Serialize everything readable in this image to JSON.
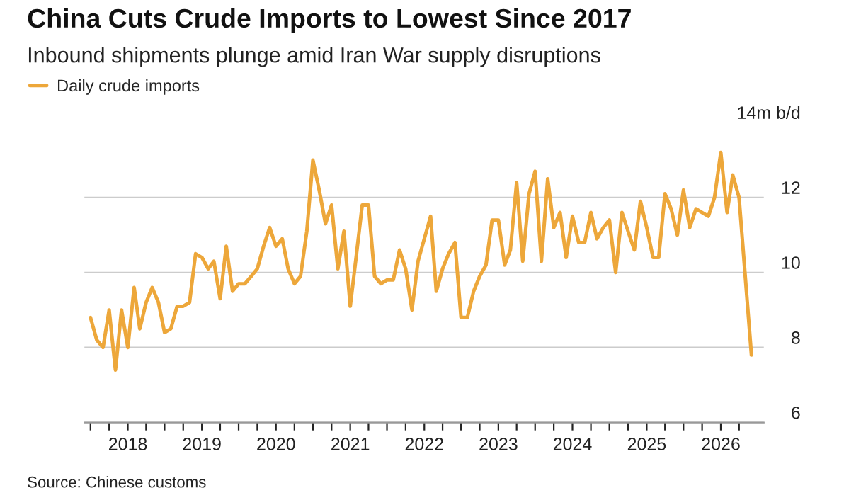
{
  "chart_data": {
    "type": "line",
    "title": "China Cuts Crude Imports to Lowest Since 2017",
    "subtitle": "Inbound shipments plunge amid Iran War supply disruptions",
    "series": [
      {
        "name": "Daily crude imports",
        "color": "#eda73a",
        "x": [
          "2017-07",
          "2017-08",
          "2017-09",
          "2017-10",
          "2017-11",
          "2017-12",
          "2018-01",
          "2018-02",
          "2018-03",
          "2018-04",
          "2018-05",
          "2018-06",
          "2018-07",
          "2018-08",
          "2018-09",
          "2018-10",
          "2018-11",
          "2018-12",
          "2019-01",
          "2019-02",
          "2019-03",
          "2019-04",
          "2019-05",
          "2019-06",
          "2019-07",
          "2019-08",
          "2019-09",
          "2019-10",
          "2019-11",
          "2019-12",
          "2020-01",
          "2020-02",
          "2020-03",
          "2020-04",
          "2020-05",
          "2020-06",
          "2020-07",
          "2020-08",
          "2020-09",
          "2020-10",
          "2020-11",
          "2020-12",
          "2021-01",
          "2021-02",
          "2021-03",
          "2021-04",
          "2021-05",
          "2021-06",
          "2021-07",
          "2021-08",
          "2021-09",
          "2021-10",
          "2021-11",
          "2021-12",
          "2022-01",
          "2022-02",
          "2022-03",
          "2022-04",
          "2022-05",
          "2022-06",
          "2022-07",
          "2022-08",
          "2022-09",
          "2022-10",
          "2022-11",
          "2022-12",
          "2023-01",
          "2023-02",
          "2023-03",
          "2023-04",
          "2023-05",
          "2023-06",
          "2023-07",
          "2023-08",
          "2023-09",
          "2023-10",
          "2023-11",
          "2023-12",
          "2024-01",
          "2024-02",
          "2024-03",
          "2024-04",
          "2024-05",
          "2024-06",
          "2024-07",
          "2024-08",
          "2024-09",
          "2024-10",
          "2024-11",
          "2024-12",
          "2025-01",
          "2025-02",
          "2025-03",
          "2025-04",
          "2025-05",
          "2025-06",
          "2025-07",
          "2025-08",
          "2025-09",
          "2025-10",
          "2025-11",
          "2025-12",
          "2026-01",
          "2026-02",
          "2026-03",
          "2026-04",
          "2026-06"
        ],
        "values": [
          8.8,
          8.2,
          8.0,
          9.0,
          7.4,
          9.0,
          8.0,
          9.6,
          8.5,
          9.2,
          9.6,
          9.2,
          8.4,
          8.5,
          9.1,
          9.1,
          9.2,
          10.5,
          10.4,
          10.1,
          10.3,
          9.3,
          10.7,
          9.5,
          9.7,
          9.7,
          9.9,
          10.1,
          10.7,
          11.2,
          10.7,
          10.9,
          10.1,
          9.7,
          9.9,
          11.1,
          13.0,
          12.2,
          11.3,
          11.8,
          10.1,
          11.1,
          9.1,
          10.5,
          11.8,
          11.8,
          9.9,
          9.7,
          9.8,
          9.8,
          10.6,
          10.1,
          9.0,
          10.3,
          10.9,
          11.5,
          9.5,
          10.1,
          10.5,
          10.8,
          8.8,
          8.8,
          9.5,
          9.9,
          10.2,
          11.4,
          11.4,
          10.2,
          10.6,
          12.4,
          10.3,
          12.1,
          12.7,
          10.3,
          12.5,
          11.2,
          11.6,
          10.4,
          11.5,
          10.8,
          10.8,
          11.6,
          10.9,
          11.2,
          11.4,
          10.0,
          11.6,
          11.1,
          10.6,
          11.9,
          11.2,
          10.4,
          10.4,
          12.1,
          11.7,
          11.0,
          12.2,
          11.2,
          11.7,
          11.6,
          11.5,
          12.0,
          13.2,
          11.6,
          12.6,
          12.0,
          7.8
        ]
      }
    ],
    "ylim": [
      6,
      14
    ],
    "yticks": [
      6,
      8,
      10,
      12,
      {
        "value": 14,
        "label": "14m b/d"
      }
    ],
    "xlim": [
      "2017-06",
      "2026-08"
    ],
    "xticks": [
      {
        "value": "2017-07",
        "label": null
      },
      {
        "value": "2017-10",
        "label": null
      },
      {
        "value": "2018-01",
        "label": "2018"
      },
      {
        "value": "2018-04",
        "label": null
      },
      {
        "value": "2018-07",
        "label": null
      },
      {
        "value": "2018-10",
        "label": null
      },
      {
        "value": "2019-01",
        "label": "2019"
      },
      {
        "value": "2019-04",
        "label": null
      },
      {
        "value": "2019-07",
        "label": null
      },
      {
        "value": "2019-10",
        "label": null
      },
      {
        "value": "2020-01",
        "label": "2020"
      },
      {
        "value": "2020-04",
        "label": null
      },
      {
        "value": "2020-07",
        "label": null
      },
      {
        "value": "2020-10",
        "label": null
      },
      {
        "value": "2021-01",
        "label": "2021"
      },
      {
        "value": "2021-04",
        "label": null
      },
      {
        "value": "2021-07",
        "label": null
      },
      {
        "value": "2021-10",
        "label": null
      },
      {
        "value": "2022-01",
        "label": "2022"
      },
      {
        "value": "2022-04",
        "label": null
      },
      {
        "value": "2022-07",
        "label": null
      },
      {
        "value": "2022-10",
        "label": null
      },
      {
        "value": "2023-01",
        "label": "2023"
      },
      {
        "value": "2023-04",
        "label": null
      },
      {
        "value": "2023-07",
        "label": null
      },
      {
        "value": "2023-10",
        "label": null
      },
      {
        "value": "2024-01",
        "label": "2024"
      },
      {
        "value": "2024-04",
        "label": null
      },
      {
        "value": "2024-07",
        "label": null
      },
      {
        "value": "2024-10",
        "label": null
      },
      {
        "value": "2025-01",
        "label": "2025"
      },
      {
        "value": "2025-04",
        "label": null
      },
      {
        "value": "2025-07",
        "label": null
      },
      {
        "value": "2025-10",
        "label": null
      },
      {
        "value": "2026-01",
        "label": "2026"
      },
      {
        "value": "2026-04",
        "label": null
      }
    ],
    "grid": "y",
    "legend": "top left",
    "annotations": [
      "Source: Chinese customs"
    ]
  }
}
